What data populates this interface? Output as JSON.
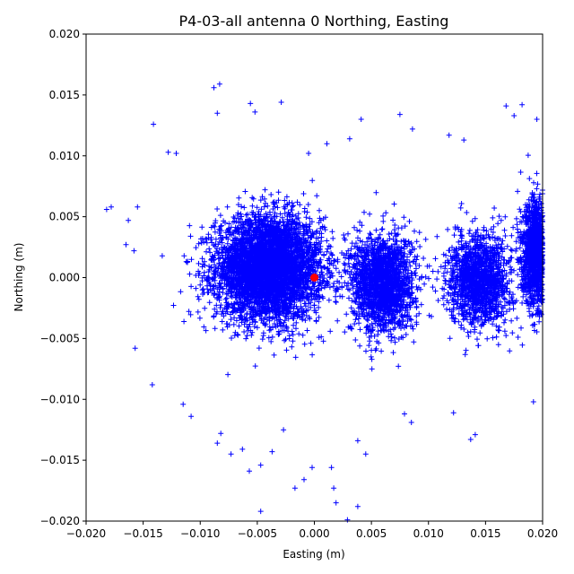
{
  "chart_data": {
    "type": "scatter",
    "title": "P4-03-all antenna 0 Northing, Easting",
    "xlabel": "Easting (m)",
    "ylabel": "Northing (m)",
    "xlim": [
      -0.02,
      0.02
    ],
    "ylim": [
      -0.02,
      0.02
    ],
    "xticks": [
      "−0.020",
      "−0.015",
      "−0.010",
      "−0.005",
      "0.000",
      "0.005",
      "0.010",
      "0.015",
      "0.020"
    ],
    "yticks": [
      "−0.020",
      "−0.015",
      "−0.010",
      "−0.005",
      "0.000",
      "0.005",
      "0.010",
      "0.015",
      "0.020"
    ],
    "grid": false,
    "series": [
      {
        "marker": "+",
        "color": "#0000ff",
        "clusters": [
          {
            "center": [
              -0.004,
              0.0008
            ],
            "spread": [
              0.0042,
              0.0038
            ],
            "count": 4500
          },
          {
            "center": [
              0.006,
              -0.0005
            ],
            "spread": [
              0.0025,
              0.0036
            ],
            "count": 1800
          },
          {
            "center": [
              0.0145,
              -0.0002
            ],
            "spread": [
              0.0025,
              0.0034
            ],
            "count": 1400
          },
          {
            "center": [
              0.0195,
              0.002
            ],
            "spread": [
              0.0012,
              0.0038
            ],
            "count": 1500
          }
        ],
        "outliers": [
          [
            -0.0182,
            0.0056
          ],
          [
            -0.0178,
            0.0058
          ],
          [
            -0.0165,
            0.0027
          ],
          [
            -0.0163,
            0.0047
          ],
          [
            -0.0158,
            0.0022
          ],
          [
            -0.0155,
            0.0058
          ],
          [
            -0.0141,
            0.0126
          ],
          [
            -0.0128,
            0.0103
          ],
          [
            -0.0121,
            0.0102
          ],
          [
            -0.0088,
            0.0156
          ],
          [
            -0.0083,
            0.0159
          ],
          [
            -0.0085,
            0.0135
          ],
          [
            -0.0056,
            0.0143
          ],
          [
            -0.0052,
            0.0136
          ],
          [
            -0.0029,
            0.0144
          ],
          [
            -0.0005,
            0.0102
          ],
          [
            0.0011,
            0.011
          ],
          [
            0.0031,
            0.0114
          ],
          [
            0.0041,
            0.013
          ],
          [
            0.0075,
            0.0134
          ],
          [
            0.0086,
            0.0122
          ],
          [
            0.0118,
            0.0117
          ],
          [
            0.0131,
            0.0113
          ],
          [
            0.0168,
            0.0141
          ],
          [
            0.0182,
            0.0142
          ],
          [
            0.0175,
            0.0133
          ],
          [
            0.0195,
            0.013
          ],
          [
            -0.0157,
            -0.0058
          ],
          [
            -0.0142,
            -0.0088
          ],
          [
            -0.0115,
            -0.0104
          ],
          [
            -0.0108,
            -0.0114
          ],
          [
            -0.0082,
            -0.0128
          ],
          [
            -0.0073,
            -0.0145
          ],
          [
            -0.0063,
            -0.0141
          ],
          [
            -0.0057,
            -0.0159
          ],
          [
            -0.0047,
            -0.0154
          ],
          [
            -0.0047,
            -0.0192
          ],
          [
            -0.0037,
            -0.0143
          ],
          [
            -0.0017,
            -0.0173
          ],
          [
            -0.0009,
            -0.0166
          ],
          [
            -0.0002,
            -0.0156
          ],
          [
            0.0015,
            -0.0156
          ],
          [
            0.0017,
            -0.0173
          ],
          [
            0.0019,
            -0.0185
          ],
          [
            0.0029,
            -0.0199
          ],
          [
            0.0038,
            -0.0188
          ],
          [
            0.0038,
            -0.0134
          ],
          [
            0.0045,
            -0.0145
          ],
          [
            0.0079,
            -0.0112
          ],
          [
            0.0085,
            -0.0119
          ],
          [
            0.0122,
            -0.0111
          ],
          [
            0.0137,
            -0.0133
          ],
          [
            0.0141,
            -0.0129
          ],
          [
            0.0192,
            -0.0102
          ],
          [
            -0.0085,
            -0.0136
          ],
          [
            -0.0027,
            -0.0125
          ]
        ]
      },
      {
        "marker": "o",
        "color": "#ff0000",
        "points": [
          [
            0.0,
            0.0
          ]
        ]
      }
    ]
  }
}
